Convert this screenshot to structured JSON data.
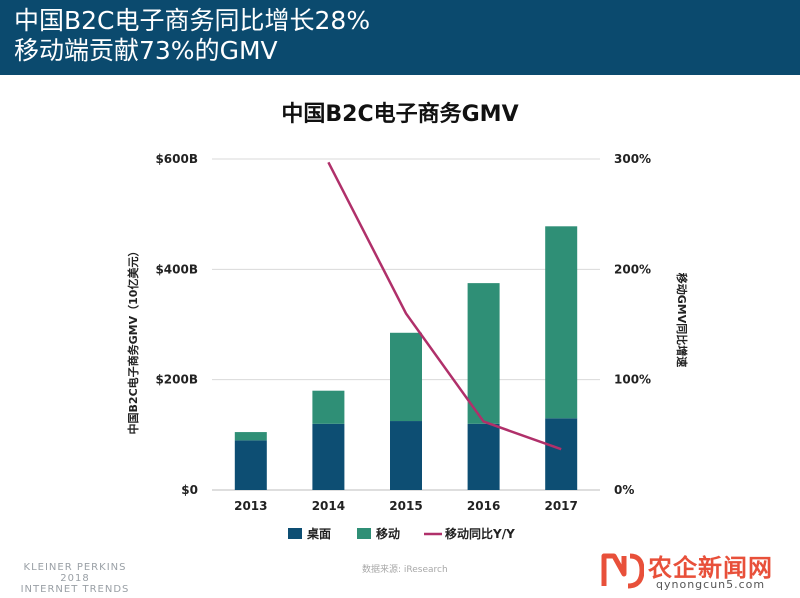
{
  "header": {
    "line1": "中国B2C电子商务同比增长28%",
    "line2": "移动端贡献73%的GMV"
  },
  "colors": {
    "header_bg": "#0b4a6e",
    "desktop": "#0d4e73",
    "mobile": "#2f8f76",
    "growth_line": "#b0306a"
  },
  "chart_data": {
    "type": "bar",
    "stacked": true,
    "title": "中国B2C电子商务GMV",
    "categories": [
      "2013",
      "2014",
      "2015",
      "2016",
      "2017"
    ],
    "series": [
      {
        "name": "桌面",
        "axis": "left",
        "values": [
          90,
          120,
          125,
          120,
          130
        ]
      },
      {
        "name": "移动",
        "axis": "left",
        "values": [
          15,
          60,
          160,
          255,
          348
        ]
      }
    ],
    "line_series": [
      {
        "name": "移动同比Y/Y",
        "axis": "right",
        "type": "line",
        "values": [
          null,
          297,
          160,
          62,
          37
        ]
      }
    ],
    "ylabel": "中国B2C电子商务GMV（10亿美元）",
    "y2label": "移动GMV同比增速",
    "ylim": [
      0,
      600
    ],
    "y2lim": [
      0,
      300
    ],
    "yticks": [
      "$0",
      "$200B",
      "$400B",
      "$600B"
    ],
    "y2ticks": [
      "0%",
      "100%",
      "200%",
      "300%"
    ],
    "grid": true,
    "legend_position": "bottom"
  },
  "footer": {
    "brand_lines": [
      "KLEINER PERKINS",
      "2018",
      "INTERNET TRENDS"
    ],
    "source": "数据来源: iResearch"
  },
  "watermark": {
    "text": "农企新闻网",
    "url": "qynongcun5.com"
  }
}
